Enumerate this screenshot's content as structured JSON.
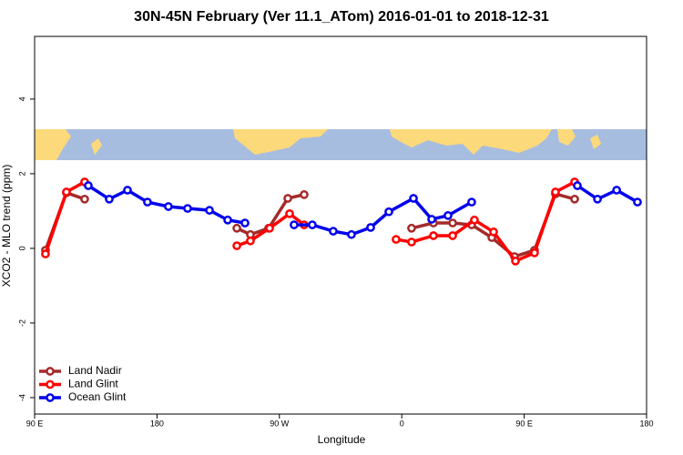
{
  "chart_data": {
    "type": "line",
    "title": "30N-45N February (Ver 11.1_ATom)   2016-01-01 to 2018-12-31",
    "x_label": "Longitude",
    "y_label": "XCO2 - MLO trend (ppm)",
    "xlim": [
      90,
      540
    ],
    "xticks": [
      {
        "value": 90,
        "label": "90 E"
      },
      {
        "value": 180,
        "label": "180"
      },
      {
        "value": 270,
        "label": "90 W"
      },
      {
        "value": 360,
        "label": "0"
      },
      {
        "value": 450,
        "label": "90 E"
      },
      {
        "value": 540,
        "label": "180"
      }
    ],
    "ylim": [
      -4.44,
      5.68
    ],
    "yticks": [
      -4,
      -2,
      0,
      2,
      4
    ],
    "legend": "bottom-left",
    "series": [
      {
        "name": "Land Nadir",
        "color": "#a52a2a",
        "x": [
          98,
          113.4,
          126.8,
          null,
          238.7,
          248.7,
          262.1,
          276.2,
          288.2,
          null,
          367.2,
          383.3,
          397.4,
          411.4,
          426.2,
          442.9,
          457.6,
          473.0,
          487.1
        ],
        "values": [
          -0.05,
          1.49,
          1.32,
          null,
          0.54,
          0.37,
          0.54,
          1.34,
          1.44,
          null,
          0.54,
          0.68,
          0.68,
          0.63,
          0.29,
          -0.22,
          -0.05,
          1.46,
          1.32
        ]
      },
      {
        "name": "Land Glint",
        "color": "#ff0000",
        "x": [
          98,
          113.4,
          126.8,
          null,
          238.7,
          248.7,
          262.8,
          277.5,
          288.2,
          null,
          355.8,
          367.2,
          383.3,
          397.4,
          413.4,
          427.5,
          443.6,
          457.6,
          473.0,
          487.1
        ],
        "values": [
          -0.15,
          1.51,
          1.78,
          null,
          0.07,
          0.2,
          0.54,
          0.93,
          0.63,
          null,
          0.24,
          0.17,
          0.34,
          0.34,
          0.76,
          0.44,
          -0.34,
          -0.12,
          1.51,
          1.78
        ]
      },
      {
        "name": "Ocean Glint",
        "color": "#0000ee",
        "x": [
          129.5,
          144.9,
          158.3,
          173.0,
          188.4,
          202.5,
          218.6,
          232.0,
          244.7,
          null,
          280.8,
          294.2,
          309.6,
          323.0,
          337.1,
          350.5,
          368.6,
          382.0,
          394.0,
          411.4,
          null,
          489.1,
          503.9,
          518.0,
          533.3
        ],
        "values": [
          1.68,
          1.32,
          1.56,
          1.24,
          1.12,
          1.07,
          1.02,
          0.76,
          0.68,
          null,
          0.63,
          0.63,
          0.46,
          0.37,
          0.56,
          0.98,
          1.34,
          0.78,
          0.88,
          1.24,
          null,
          1.68,
          1.32,
          1.56,
          1.24
        ]
      }
    ]
  }
}
